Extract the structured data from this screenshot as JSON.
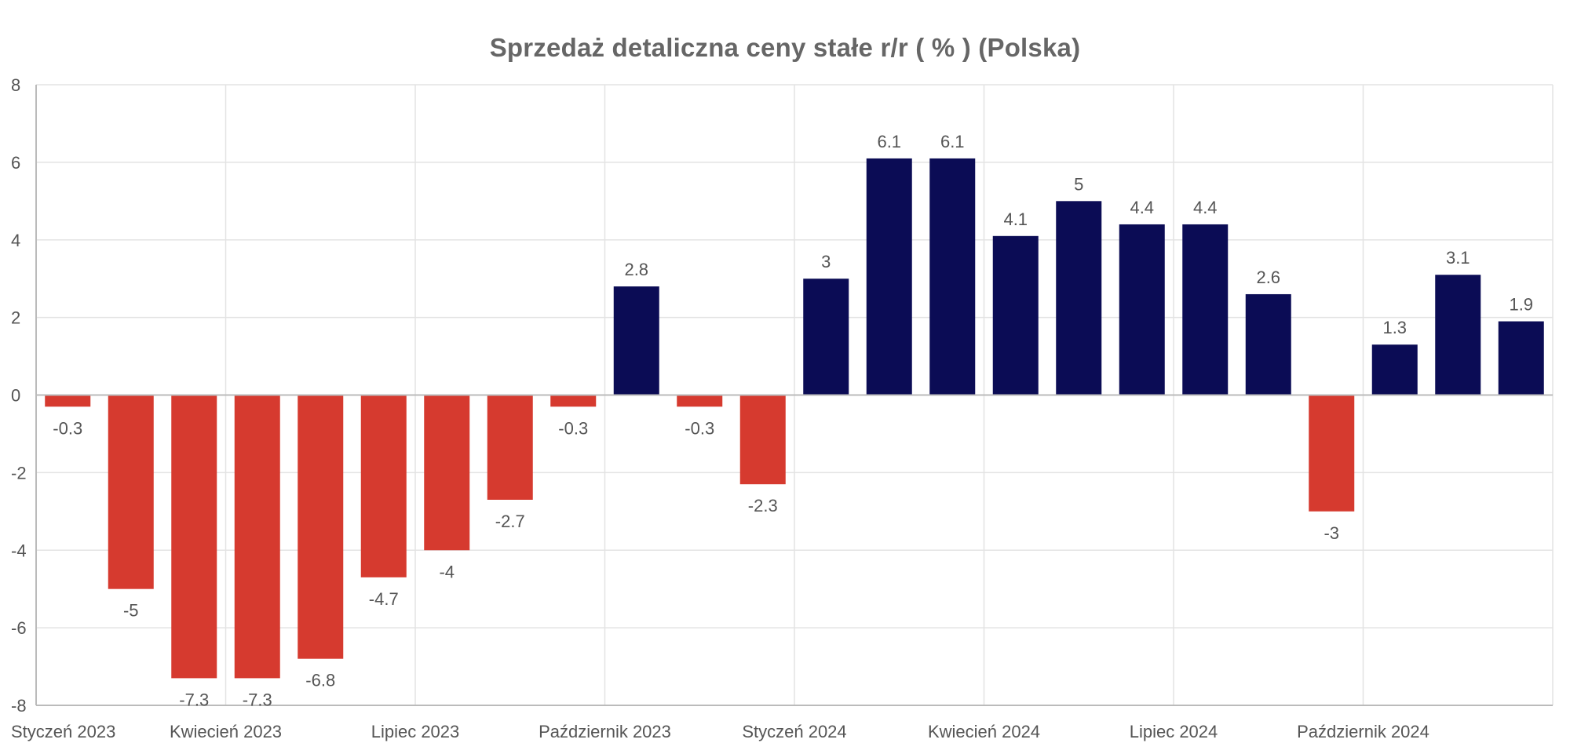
{
  "chart_data": {
    "type": "bar",
    "title": "Sprzedaż detaliczna ceny stałe r/r ( % ) (Polska)",
    "xlabel": "",
    "ylabel": "",
    "ylim": [
      -8,
      8
    ],
    "y_ticks": [
      8,
      6,
      4,
      2,
      0,
      -2,
      -4,
      -6,
      -8
    ],
    "x_tick_labels": [
      {
        "label": "Styczeń 2023",
        "index": 0
      },
      {
        "label": "Kwiecień 2023",
        "index": 3
      },
      {
        "label": "Lipiec 2023",
        "index": 6
      },
      {
        "label": "Październik 2023",
        "index": 9
      },
      {
        "label": "Styczeń 2024",
        "index": 12
      },
      {
        "label": "Kwiecień 2024",
        "index": 15
      },
      {
        "label": "Lipiec 2024",
        "index": 18
      },
      {
        "label": "Październik 2024",
        "index": 21
      }
    ],
    "categories": [
      "2023-01",
      "2023-02",
      "2023-03",
      "2023-04",
      "2023-05",
      "2023-06",
      "2023-07",
      "2023-08",
      "2023-09",
      "2023-10",
      "2023-11",
      "2023-12",
      "2024-01",
      "2024-02",
      "2024-03",
      "2024-04",
      "2024-05",
      "2024-06",
      "2024-07",
      "2024-08",
      "2024-09",
      "2024-10",
      "2024-11",
      "2024-12"
    ],
    "values": [
      -0.3,
      -5,
      -7.3,
      -7.3,
      -6.8,
      -4.7,
      -4,
      -2.7,
      -0.3,
      2.8,
      -0.3,
      -2.3,
      3,
      6.1,
      6.1,
      4.1,
      5,
      4.4,
      4.4,
      2.6,
      -3,
      1.3,
      3.1,
      1.9
    ],
    "value_labels": [
      "-0.3",
      "-5",
      "-7.3",
      "-7.3",
      "-6.8",
      "-4.7",
      "-4",
      "-2.7",
      "-0.3",
      "2.8",
      "-0.3",
      "-2.3",
      "3",
      "6.1",
      "6.1",
      "4.1",
      "5",
      "4.4",
      "4.4",
      "2.6",
      "-3",
      "1.3",
      "3.1",
      "1.9"
    ],
    "grid": true,
    "colors": {
      "positive": "#0b0c55",
      "negative": "#d63a2f",
      "grid": "#e3e3e3",
      "axis": "#bbbbbb",
      "text": "#555555",
      "title": "#666666"
    }
  }
}
